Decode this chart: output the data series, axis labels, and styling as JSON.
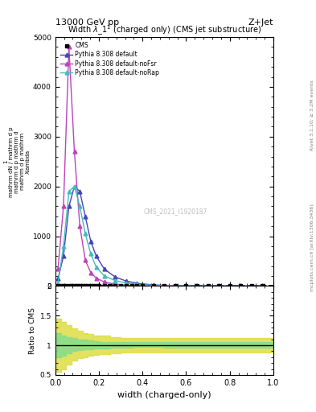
{
  "title_left": "13000 GeV pp",
  "title_right": "Z+Jet",
  "plot_title": "Widthλ_1¹ (charged only) (CMS jet substructure)",
  "xlabel": "width (charged-only)",
  "ylabel_lines": [
    "1",
    "mathrm dN / mathrm d p",
    "mathrm d p mathrm d",
    "mathrm d p mathrm",
    "mathrm d p m",
    "λlambda"
  ],
  "watermark": "CMS_2021_I1920187",
  "right_label_top": "Rivet 3.1.10; ≥ 3.2M events",
  "right_label_bot": "mcplots.cern.ch [arXiv:1306.3436]",
  "xlim": [
    0,
    1
  ],
  "ylim_main": [
    0,
    5000
  ],
  "ylim_ratio": [
    0.5,
    2.0
  ],
  "cms_x": [
    0.0125,
    0.025,
    0.0375,
    0.05,
    0.0625,
    0.075,
    0.0875,
    0.1,
    0.1125,
    0.125,
    0.1375,
    0.15,
    0.1625,
    0.175,
    0.1875,
    0.2,
    0.225,
    0.25,
    0.275,
    0.3,
    0.325,
    0.35,
    0.375,
    0.4,
    0.45,
    0.5,
    0.55,
    0.6,
    0.65,
    0.7,
    0.75,
    0.8,
    0.85,
    0.9,
    0.95
  ],
  "cms_y": [
    0,
    0,
    0,
    0,
    0,
    0,
    0,
    0,
    0,
    0,
    0,
    0,
    0,
    0,
    0,
    0,
    0,
    0,
    0,
    0,
    0,
    0,
    0,
    0,
    0,
    0,
    0,
    0,
    0,
    0,
    0,
    0,
    0,
    0,
    0
  ],
  "blue_x": [
    0.0125,
    0.0375,
    0.0625,
    0.0875,
    0.1125,
    0.1375,
    0.1625,
    0.1875,
    0.225,
    0.275,
    0.325,
    0.375,
    0.45,
    0.55,
    0.65,
    0.75,
    0.85,
    0.95
  ],
  "blue_y": [
    150,
    600,
    1600,
    2000,
    1900,
    1400,
    900,
    600,
    340,
    180,
    100,
    55,
    22,
    8,
    3,
    1,
    0.3,
    0.1
  ],
  "magenta_x": [
    0.0125,
    0.0375,
    0.0625,
    0.0875,
    0.1125,
    0.1375,
    0.1625,
    0.1875,
    0.225,
    0.275,
    0.325,
    0.375,
    0.45,
    0.55,
    0.65,
    0.75,
    0.85,
    0.95
  ],
  "magenta_y": [
    350,
    1600,
    4800,
    2700,
    1200,
    520,
    270,
    160,
    80,
    38,
    18,
    9,
    4,
    1.5,
    0.5,
    0.2,
    0.1,
    0.05
  ],
  "cyan_x": [
    0.0125,
    0.0375,
    0.0625,
    0.0875,
    0.1125,
    0.1375,
    0.1625,
    0.1875,
    0.225,
    0.275,
    0.325,
    0.375,
    0.45,
    0.55,
    0.65,
    0.75,
    0.85,
    0.95
  ],
  "cyan_y": [
    60,
    800,
    1900,
    2000,
    1600,
    1050,
    650,
    380,
    200,
    110,
    60,
    32,
    14,
    5,
    2,
    0.8,
    0.3,
    0.1
  ],
  "yellow_band_x": [
    0.0,
    0.025,
    0.05,
    0.075,
    0.1,
    0.125,
    0.15,
    0.175,
    0.2,
    0.25,
    0.3,
    0.35,
    0.4,
    0.5,
    0.6,
    0.7,
    0.8,
    0.9,
    1.0
  ],
  "yellow_band_lo": [
    0.55,
    0.6,
    0.68,
    0.75,
    0.78,
    0.8,
    0.82,
    0.84,
    0.85,
    0.87,
    0.88,
    0.88,
    0.88,
    0.88,
    0.88,
    0.88,
    0.88,
    0.88,
    0.88
  ],
  "yellow_band_hi": [
    1.45,
    1.4,
    1.34,
    1.28,
    1.24,
    1.21,
    1.19,
    1.17,
    1.16,
    1.14,
    1.13,
    1.12,
    1.12,
    1.12,
    1.12,
    1.12,
    1.12,
    1.12,
    1.12
  ],
  "green_band_lo": [
    0.8,
    0.83,
    0.87,
    0.9,
    0.92,
    0.93,
    0.94,
    0.95,
    0.95,
    0.96,
    0.96,
    0.97,
    0.97,
    0.96,
    0.96,
    0.96,
    0.96,
    0.96,
    0.96
  ],
  "green_band_hi": [
    1.2,
    1.17,
    1.14,
    1.12,
    1.1,
    1.09,
    1.08,
    1.07,
    1.06,
    1.06,
    1.05,
    1.05,
    1.05,
    1.05,
    1.05,
    1.05,
    1.05,
    1.05,
    1.05
  ],
  "color_blue": "#4444bb",
  "color_magenta": "#bb44bb",
  "color_cyan": "#44bbbb",
  "color_yellow": "#dddd44",
  "color_green": "#88dd88",
  "yticks_main": [
    0,
    1000,
    2000,
    3000,
    4000,
    5000
  ],
  "ytick_labels_main": [
    "0",
    "1000",
    "2000",
    "3000",
    "4000",
    "5000"
  ],
  "yticks_ratio": [
    0.5,
    1.0,
    1.5,
    2.0
  ],
  "ytick_labels_ratio": [
    "0.5",
    "1",
    "1.5",
    "2"
  ]
}
